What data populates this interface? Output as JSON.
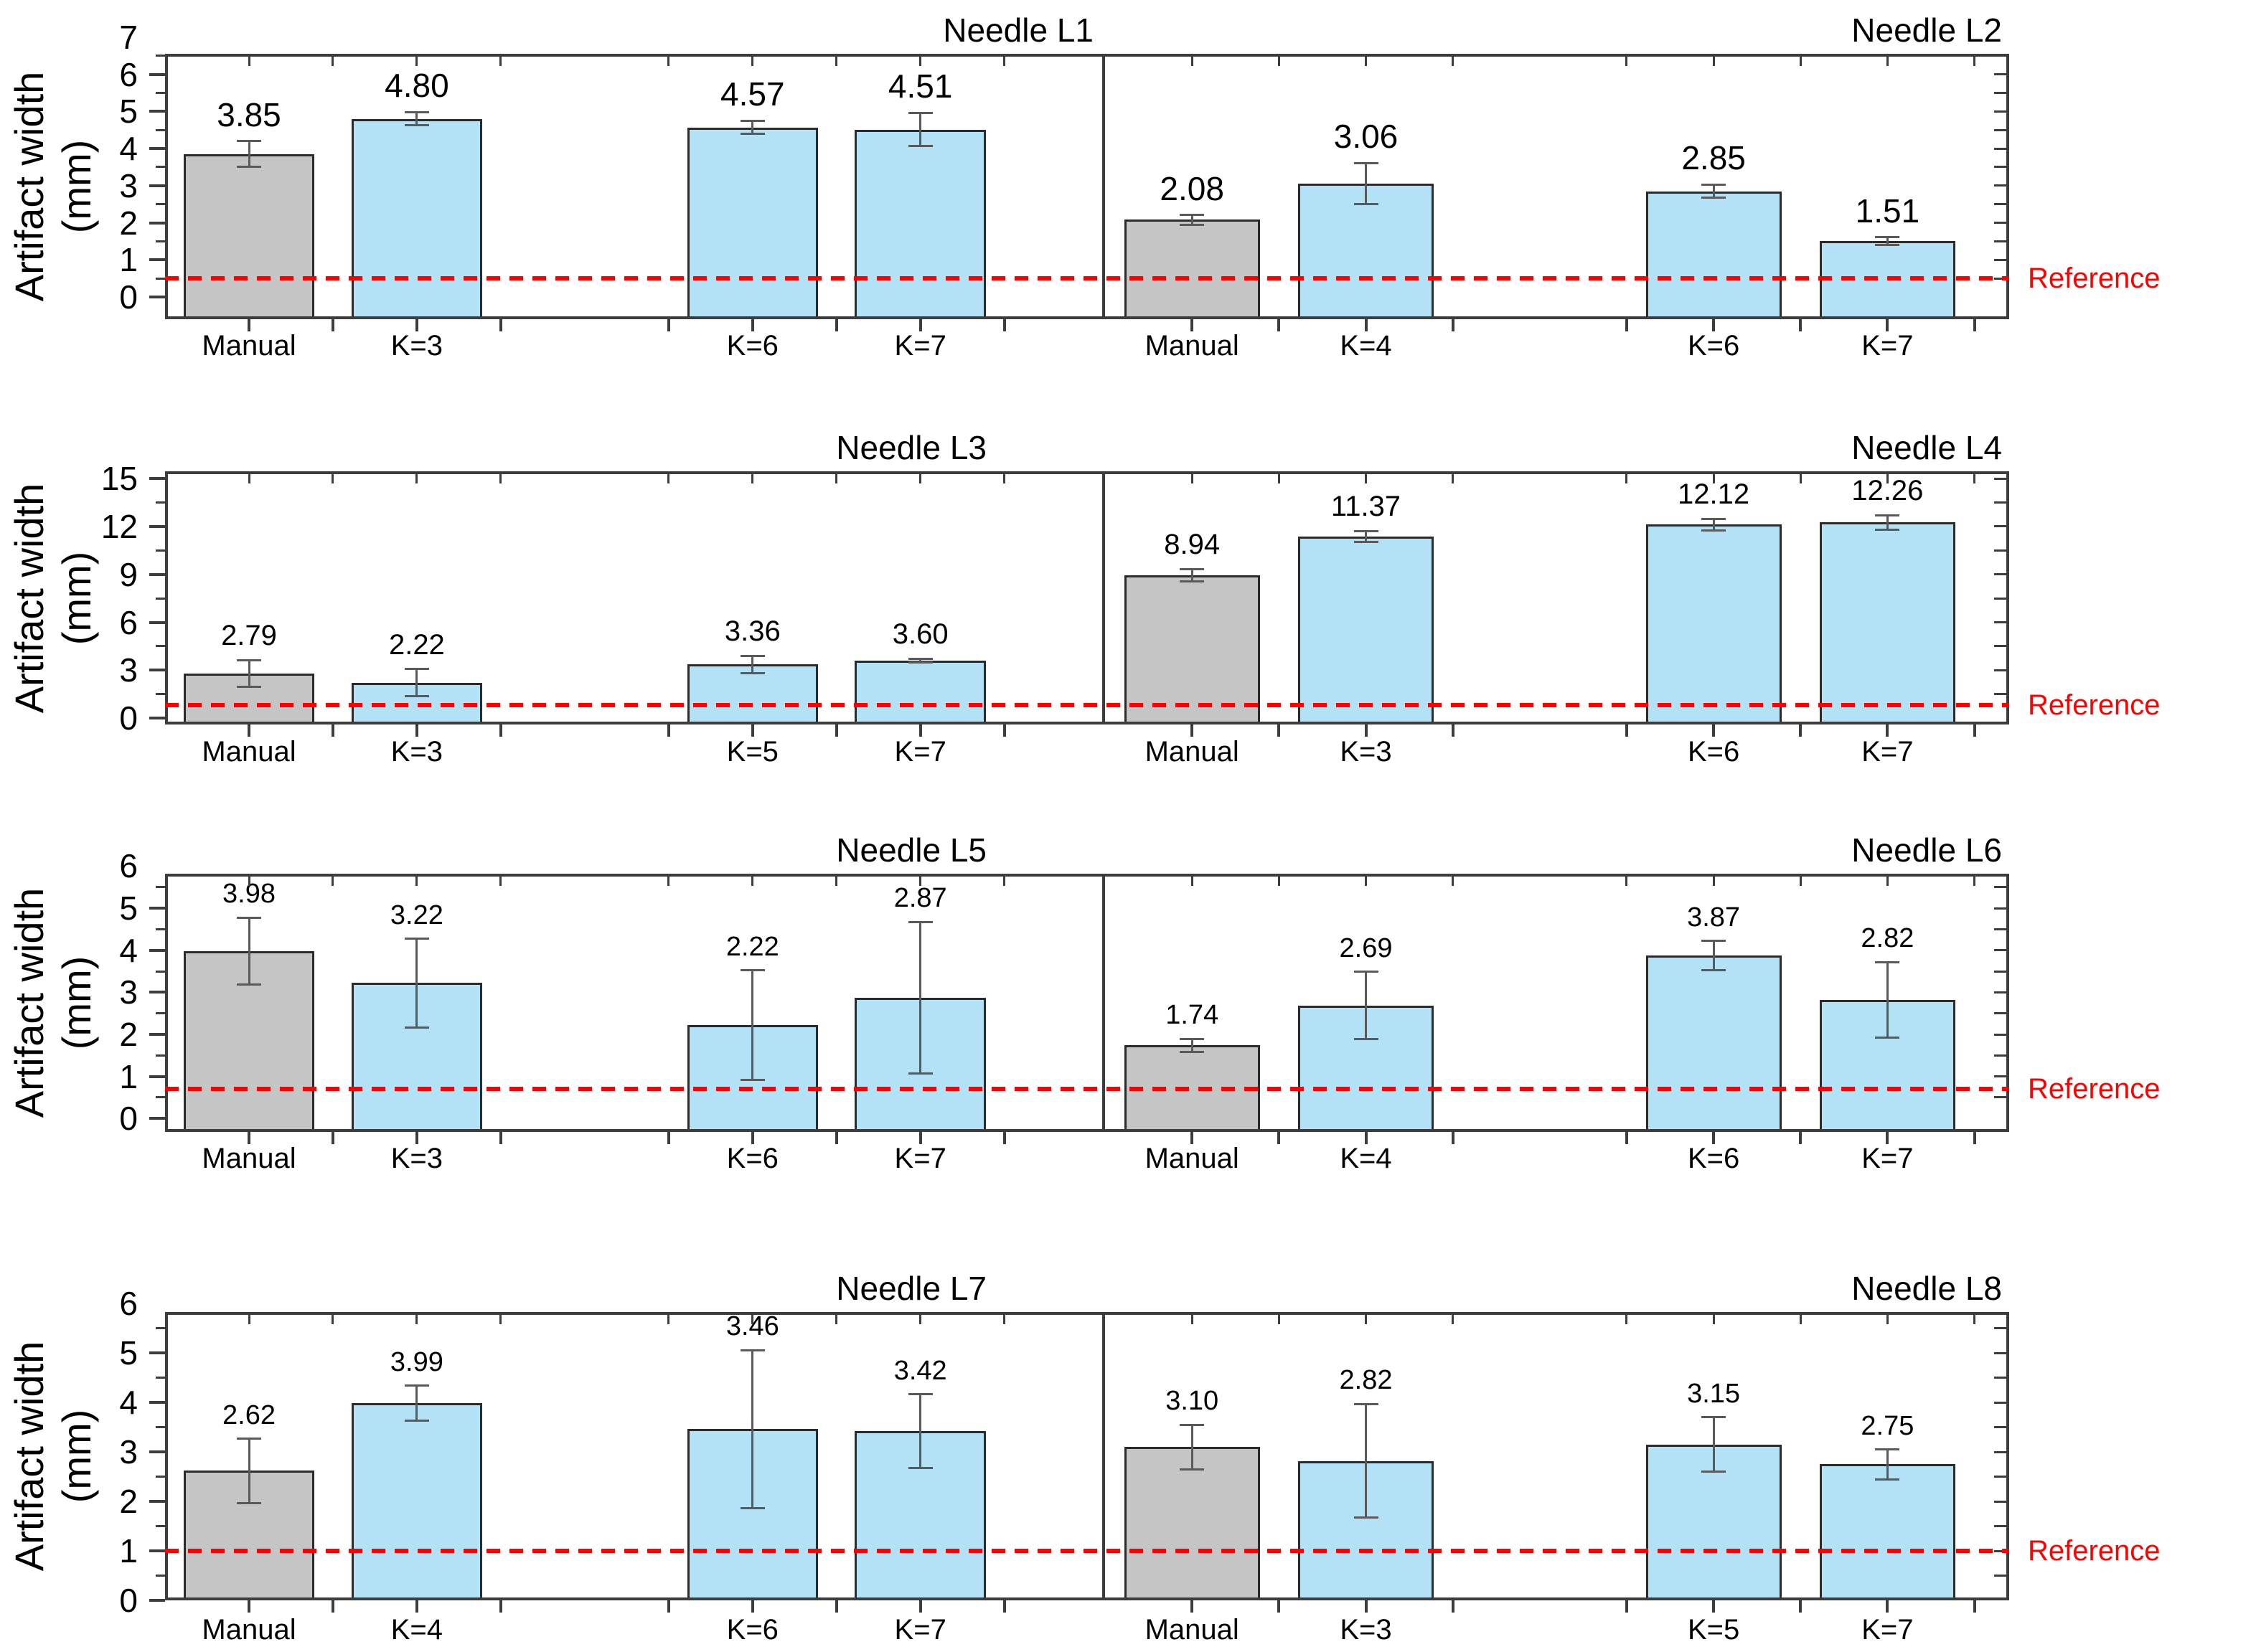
{
  "figure": {
    "y_axis_label_line1": "Artifact width",
    "y_axis_label_line2": "(mm)",
    "reference_label": "Reference"
  },
  "colors": {
    "manual_bar_fill": "#c5c5c5",
    "k_bar_fill": "#b3e2f7",
    "bar_border": "#2b2b2b",
    "frame": "#3d3d3d",
    "error_bar": "#5a5a5a",
    "reference_line": "#fe0000",
    "text": "#000000"
  },
  "chart_data": [
    {
      "type": "bar",
      "ylabel": "Artifact width (mm)",
      "ylim": [
        -0.6,
        6.55
      ],
      "yticks": [
        0,
        1,
        2,
        3,
        4,
        5,
        6,
        7
      ],
      "minor_tick_step": 0.5,
      "grid": false,
      "reference_value": 0.5,
      "panels": [
        {
          "title": "Needle L1",
          "categories": [
            "Manual",
            "K=3",
            "K=6",
            "K=7"
          ],
          "values": [
            3.85,
            4.8,
            4.57,
            4.51
          ],
          "errors": [
            0.35,
            0.18,
            0.18,
            0.45
          ],
          "bar_types": [
            "manual",
            "k",
            "k",
            "k"
          ]
        },
        {
          "title": "Needle L2",
          "categories": [
            "Manual",
            "K=4",
            "K=6",
            "K=7"
          ],
          "values": [
            2.08,
            3.06,
            2.85,
            1.51
          ],
          "errors": [
            0.13,
            0.55,
            0.18,
            0.1
          ],
          "bar_types": [
            "manual",
            "k",
            "k",
            "k"
          ]
        }
      ]
    },
    {
      "type": "bar",
      "ylabel": "Artifact width (mm)",
      "ylim": [
        -0.4,
        15.45
      ],
      "yticks": [
        0,
        3,
        6,
        9,
        12,
        15
      ],
      "minor_tick_step": 1.5,
      "grid": false,
      "reference_value": 0.8,
      "panels": [
        {
          "title": "Needle L3",
          "categories": [
            "Manual",
            "K=3",
            "K=5",
            "K=7"
          ],
          "values": [
            2.79,
            2.22,
            3.36,
            3.6
          ],
          "errors": [
            0.85,
            0.85,
            0.55,
            0.12
          ],
          "bar_types": [
            "manual",
            "k",
            "k",
            "k"
          ]
        },
        {
          "title": "Needle L4",
          "categories": [
            "Manual",
            "K=3",
            "K=6",
            "K=7"
          ],
          "values": [
            8.94,
            11.37,
            12.12,
            12.26
          ],
          "errors": [
            0.4,
            0.35,
            0.35,
            0.45
          ],
          "bar_types": [
            "manual",
            "k",
            "k",
            "k"
          ]
        }
      ]
    },
    {
      "type": "bar",
      "ylabel": "Artifact width (mm)",
      "ylim": [
        -0.32,
        5.82
      ],
      "yticks": [
        0,
        1,
        2,
        3,
        4,
        5,
        6
      ],
      "minor_tick_step": 0.5,
      "grid": false,
      "reference_value": 0.7,
      "panels": [
        {
          "title": "Needle L5",
          "categories": [
            "Manual",
            "K=3",
            "K=6",
            "K=7"
          ],
          "values": [
            3.98,
            3.22,
            2.22,
            2.87
          ],
          "errors": [
            0.8,
            1.05,
            1.3,
            1.8
          ],
          "bar_types": [
            "manual",
            "k",
            "k",
            "k"
          ]
        },
        {
          "title": "Needle L6",
          "categories": [
            "Manual",
            "K=4",
            "K=6",
            "K=7"
          ],
          "values": [
            1.74,
            2.69,
            3.87,
            2.82
          ],
          "errors": [
            0.15,
            0.8,
            0.35,
            0.9
          ],
          "bar_types": [
            "manual",
            "k",
            "k",
            "k"
          ]
        }
      ]
    },
    {
      "type": "bar",
      "ylabel": "Artifact width (mm)",
      "ylim": [
        0,
        5.83
      ],
      "yticks": [
        0,
        1,
        2,
        3,
        4,
        5,
        6
      ],
      "minor_tick_step": 0.5,
      "grid": false,
      "reference_value": 1.0,
      "panels": [
        {
          "title": "Needle L7",
          "categories": [
            "Manual",
            "K=4",
            "K=6",
            "K=7"
          ],
          "values": [
            2.62,
            3.99,
            3.46,
            3.42
          ],
          "errors": [
            0.65,
            0.35,
            1.6,
            0.75
          ],
          "bar_types": [
            "manual",
            "k",
            "k",
            "k"
          ]
        },
        {
          "title": "Needle L8",
          "categories": [
            "Manual",
            "K=3",
            "K=5",
            "K=7"
          ],
          "values": [
            3.1,
            2.82,
            3.15,
            2.75
          ],
          "errors": [
            0.45,
            1.15,
            0.55,
            0.3
          ],
          "bar_types": [
            "manual",
            "k",
            "k",
            "k"
          ]
        }
      ]
    }
  ]
}
